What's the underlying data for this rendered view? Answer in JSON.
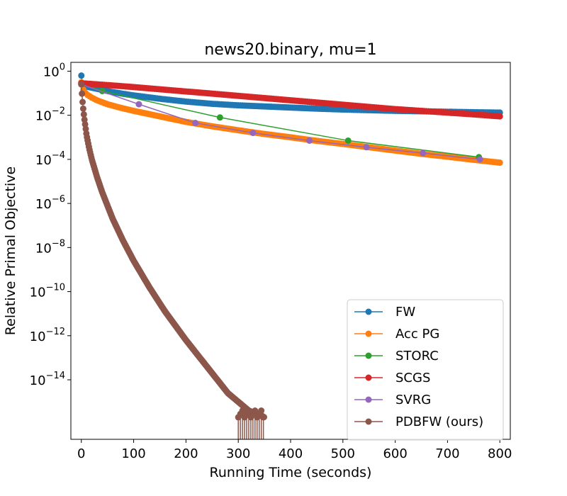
{
  "chart_data": {
    "type": "line",
    "title": "news20.binary, mu=1",
    "xlabel": "Running Time (seconds)",
    "ylabel": "Relative Primal Objective",
    "yscale": "log",
    "xlim": [
      -20,
      820
    ],
    "ylim_exp": [
      -16.7,
      0.4
    ],
    "xticks": [
      0,
      100,
      200,
      300,
      400,
      500,
      600,
      700,
      800
    ],
    "yticks_exp": [
      0,
      -2,
      -4,
      -6,
      -8,
      -10,
      -12,
      -14
    ],
    "ytick_base": "10",
    "legend_position": "lower-right",
    "series": [
      {
        "name": "FW",
        "color": "#1f77b4",
        "dense": true,
        "x": [
          0,
          2,
          5,
          10,
          20,
          40,
          60,
          100,
          150,
          200,
          250,
          300,
          350,
          400,
          450,
          500,
          550,
          600,
          650,
          700,
          750,
          800
        ],
        "y_exp": [
          -0.2,
          -0.5,
          -0.65,
          -0.7,
          -0.75,
          -0.85,
          -0.95,
          -1.1,
          -1.25,
          -1.38,
          -1.48,
          -1.55,
          -1.6,
          -1.65,
          -1.7,
          -1.74,
          -1.77,
          -1.8,
          -1.82,
          -1.84,
          -1.86,
          -1.88
        ]
      },
      {
        "name": "Acc PG",
        "color": "#ff7f0e",
        "dense": true,
        "x": [
          0,
          2,
          5,
          10,
          20,
          30,
          50,
          75,
          100,
          150,
          200,
          250,
          300,
          350,
          400,
          450,
          500,
          550,
          600,
          650,
          700,
          750,
          800
        ],
        "y_exp": [
          -0.5,
          -0.7,
          -0.9,
          -1.05,
          -1.2,
          -1.32,
          -1.5,
          -1.66,
          -1.8,
          -2.05,
          -2.3,
          -2.5,
          -2.68,
          -2.85,
          -3.0,
          -3.16,
          -3.3,
          -3.45,
          -3.6,
          -3.75,
          -3.88,
          -4.02,
          -4.15
        ]
      },
      {
        "name": "STORC",
        "color": "#2ca02c",
        "dense": false,
        "x": [
          0,
          40,
          265,
          510,
          760
        ],
        "y_exp": [
          -0.55,
          -0.9,
          -2.1,
          -3.15,
          -3.9
        ]
      },
      {
        "name": "SCGS",
        "color": "#d62728",
        "dense": true,
        "x": [
          0,
          20,
          50,
          100,
          150,
          200,
          250,
          300,
          350,
          400,
          450,
          500,
          550,
          600,
          650,
          700,
          750,
          800
        ],
        "y_exp": [
          -0.55,
          -0.58,
          -0.63,
          -0.72,
          -0.82,
          -0.92,
          -1.02,
          -1.12,
          -1.22,
          -1.32,
          -1.42,
          -1.52,
          -1.62,
          -1.72,
          -1.8,
          -1.88,
          -1.96,
          -2.05
        ]
      },
      {
        "name": "SVRG",
        "color": "#9467bd",
        "dense": false,
        "x": [
          0,
          110,
          218,
          328,
          436,
          545,
          653,
          762
        ],
        "y_exp": [
          -0.6,
          -1.5,
          -2.35,
          -2.8,
          -3.15,
          -3.45,
          -3.72,
          -4.0
        ]
      },
      {
        "name": "PDBFW (ours)",
        "color": "#8c564b",
        "dense": true,
        "x": [
          0,
          2,
          4,
          6,
          10,
          15,
          20,
          30,
          40,
          60,
          80,
          100,
          130,
          160,
          200,
          240,
          280,
          300,
          320,
          335,
          350
        ],
        "y_exp": [
          -0.6,
          -1.3,
          -1.8,
          -2.2,
          -2.9,
          -3.5,
          -4.0,
          -4.8,
          -5.5,
          -6.7,
          -7.7,
          -8.6,
          -9.8,
          -10.9,
          -12.2,
          -13.4,
          -14.6,
          -15.0,
          -15.4,
          -15.55,
          -15.7
        ]
      }
    ]
  }
}
